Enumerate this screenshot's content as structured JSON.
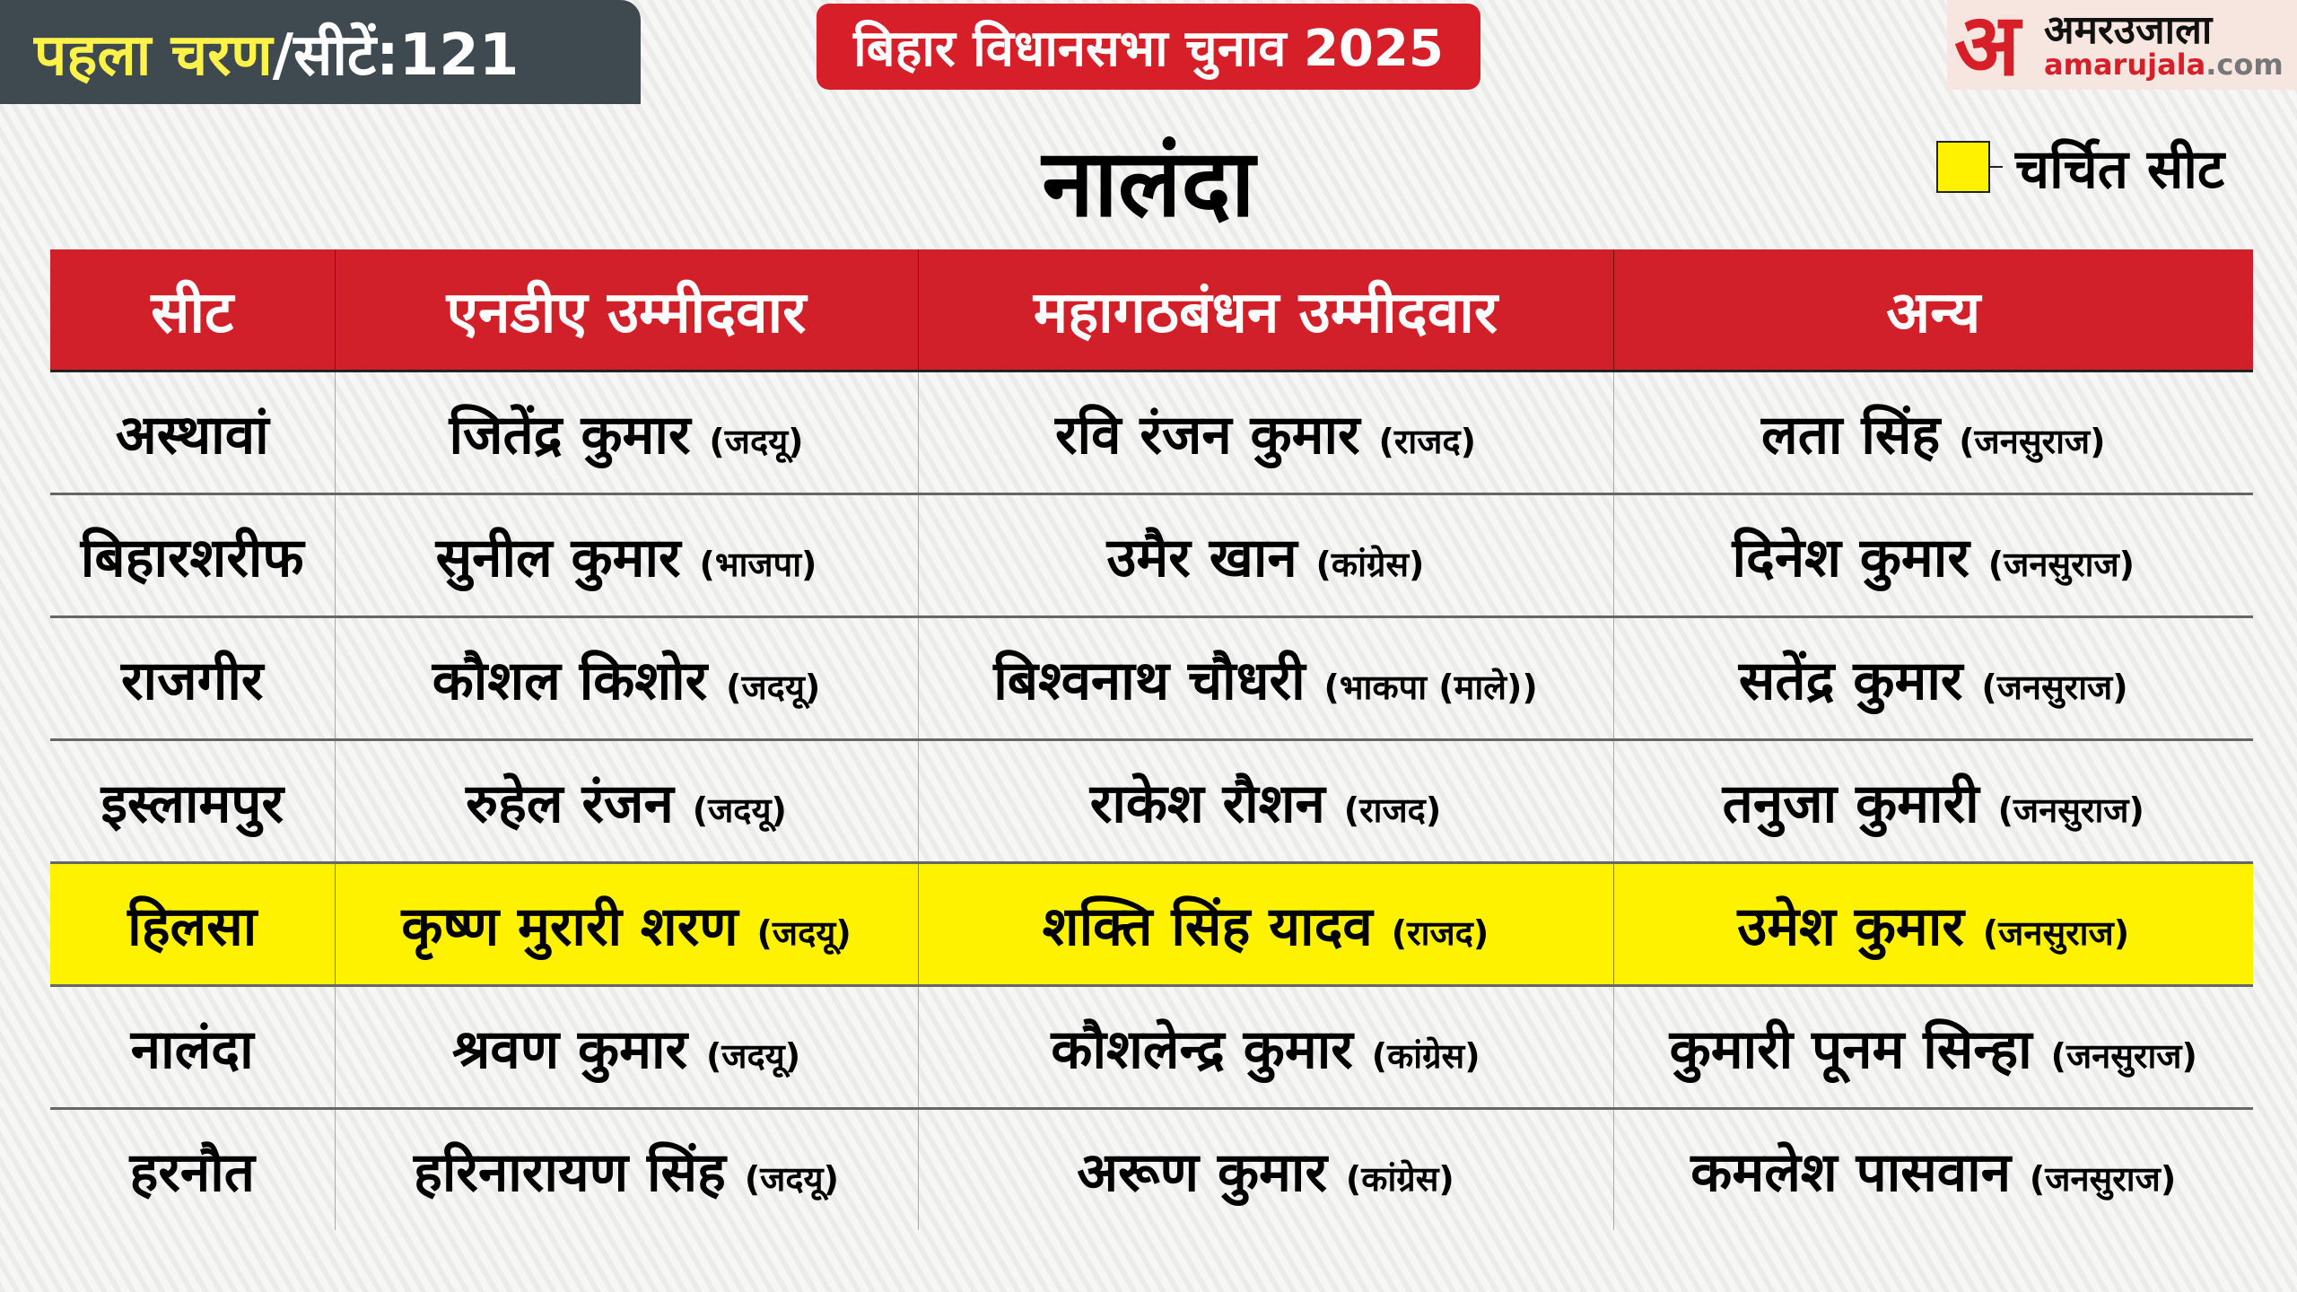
{
  "phase_badge": {
    "phase": "पहला चरण",
    "seats": "/सीटें:121"
  },
  "title": "बिहार विधानसभा चुनाव 2025",
  "logo": {
    "hindi": "अमरउजाला",
    "domain": "amarujala",
    "tld": ".com"
  },
  "district": "नालंदा",
  "legend": {
    "label": "चर्चित सीट",
    "color": "#fff200"
  },
  "colors": {
    "header_red": "#d2202a",
    "highlight": "#fff200",
    "badge_bg": "#3e4a4f"
  },
  "table": {
    "headers": [
      "सीट",
      "एनडीए उम्मीदवार",
      "महागठबंधन उम्मीदवार",
      "अन्य"
    ],
    "rows": [
      {
        "seat": "अस्थावां",
        "highlighted": false,
        "nda": {
          "name": "जितेंद्र कुमार",
          "party": "(जदयू)"
        },
        "mgb": {
          "name": "रवि रंजन कुमार",
          "party": "(राजद)"
        },
        "other": {
          "name": "लता सिंह",
          "party": "(जनसुराज)"
        }
      },
      {
        "seat": "बिहारशरीफ",
        "highlighted": false,
        "nda": {
          "name": "सुनील कुमार",
          "party": "(भाजपा)"
        },
        "mgb": {
          "name": "उमैर खान",
          "party": "(कांग्रेस)"
        },
        "other": {
          "name": "दिनेश कुमार",
          "party": "(जनसुराज)"
        }
      },
      {
        "seat": "राजगीर",
        "highlighted": false,
        "nda": {
          "name": "कौशल किशोर",
          "party": "(जदयू)"
        },
        "mgb": {
          "name": "बिश्वनाथ चौधरी",
          "party": "(भाकपा (माले))"
        },
        "other": {
          "name": "सतेंद्र कुमार",
          "party": "(जनसुराज)"
        }
      },
      {
        "seat": "इस्लामपुर",
        "highlighted": false,
        "nda": {
          "name": "रुहेल रंजन",
          "party": "(जदयू)"
        },
        "mgb": {
          "name": "राकेश रौशन",
          "party": "(राजद)"
        },
        "other": {
          "name": "तनुजा कुमारी",
          "party": "(जनसुराज)"
        }
      },
      {
        "seat": "हिलसा",
        "highlighted": true,
        "nda": {
          "name": "कृष्ण मुरारी शरण",
          "party": "(जदयू)"
        },
        "mgb": {
          "name": "शक्ति सिंह यादव",
          "party": "(राजद)"
        },
        "other": {
          "name": "उमेश कुमार",
          "party": "(जनसुराज)"
        }
      },
      {
        "seat": "नालंदा",
        "highlighted": false,
        "nda": {
          "name": "श्रवण कुमार",
          "party": "(जदयू)"
        },
        "mgb": {
          "name": "कौशलेन्द्र कुमार",
          "party": "(कांग्रेस)"
        },
        "other": {
          "name": "कुमारी पूनम सिन्हा",
          "party": "(जनसुराज)"
        }
      },
      {
        "seat": "हरनौत",
        "highlighted": false,
        "nda": {
          "name": "हरिनारायण सिंह",
          "party": "(जदयू)"
        },
        "mgb": {
          "name": "अरूण कुमार",
          "party": "(कांग्रेस)"
        },
        "other": {
          "name": "कमलेश पासवान",
          "party": "(जनसुराज)"
        }
      }
    ]
  }
}
